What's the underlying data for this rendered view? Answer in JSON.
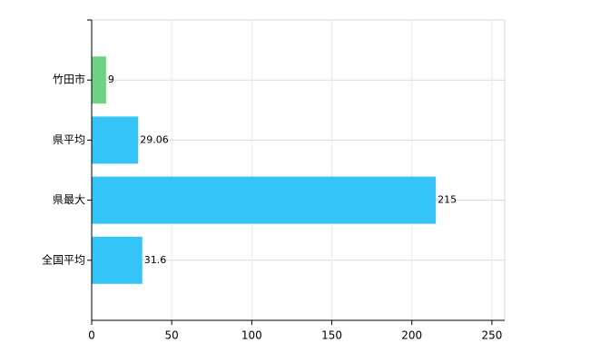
{
  "chart_data": {
    "type": "barh",
    "categories": [
      "竹田市",
      "県平均",
      "県最大",
      "全国平均"
    ],
    "values": [
      9,
      29.06,
      215,
      31.6
    ],
    "colors": [
      "#6fd383",
      "#35c4f7",
      "#35c4f7",
      "#35c4f7"
    ],
    "xlim": [
      0,
      258
    ],
    "xticks": [
      0,
      50,
      100,
      150,
      200,
      250
    ],
    "grid": true
  }
}
